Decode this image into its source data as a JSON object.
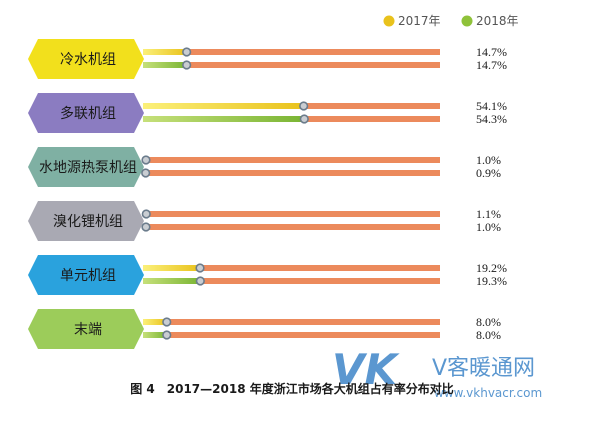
{
  "chart_data": {
    "type": "bar",
    "orientation": "horizontal",
    "title": "图 4　2017—2018 年度浙江市场各大机组占有率分布对比",
    "categories": [
      "冷水机组",
      "多联机组",
      "水地源热泵机组",
      "溴化锂机组",
      "单元机组",
      "末端"
    ],
    "series": [
      {
        "name": "2017年",
        "color": "#f0d020",
        "values": [
          14.7,
          54.1,
          1.0,
          1.1,
          19.2,
          8.0
        ],
        "labels": [
          "14.7%",
          "54.1%",
          "1.0%",
          "1.1%",
          "19.2%",
          "8.0%"
        ]
      },
      {
        "name": "2018年",
        "color": "#8fc23a",
        "values": [
          14.7,
          54.3,
          0.9,
          1.0,
          19.3,
          8.0
        ],
        "labels": [
          "14.7%",
          "54.3%",
          "0.9%",
          "1.0%",
          "19.3%",
          "8.0%"
        ]
      }
    ],
    "xlim": [
      0,
      100
    ],
    "legend_position": "top-right",
    "category_colors": [
      "#f2e01c",
      "#8b7cc1",
      "#7fb0a3",
      "#a9a9b3",
      "#2aa2dd",
      "#9ccc5a"
    ],
    "track_color": "#ec8a5c"
  },
  "legend": {
    "items": [
      "2017年",
      "2018年"
    ]
  },
  "caption": "图 4　2017—2018 年度浙江市场各大机组占有率分布对比",
  "watermark": {
    "logo": "VK",
    "name": "V客暖通网",
    "url": "www.vkhvacr.com"
  }
}
